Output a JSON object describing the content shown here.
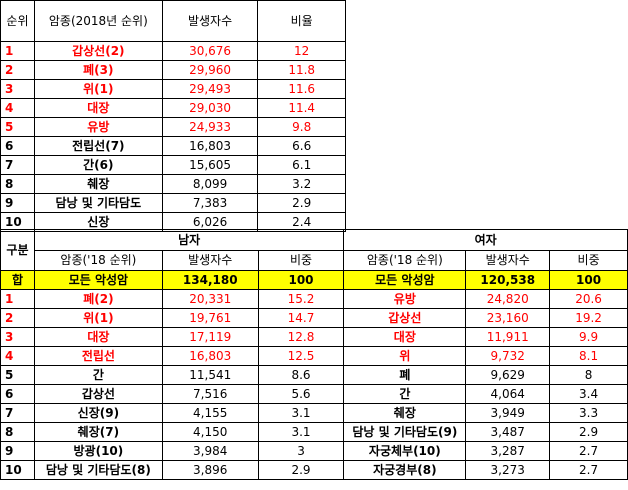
{
  "table1": {
    "headers": [
      "순위",
      "암종(2018년 순위)",
      "발생자수",
      "비율"
    ],
    "rows": [
      {
        "rank": "1",
        "cancer": "갑상선(2)",
        "count": "30,676",
        "ratio": "12",
        "red": true
      },
      {
        "rank": "2",
        "cancer": "폐(3)",
        "count": "29,960",
        "ratio": "11.8",
        "red": true
      },
      {
        "rank": "3",
        "cancer": "위(1)",
        "count": "29,493",
        "ratio": "11.6",
        "red": true
      },
      {
        "rank": "4",
        "cancer": "대장",
        "count": "29,030",
        "ratio": "11.4",
        "red": true
      },
      {
        "rank": "5",
        "cancer": "유방",
        "count": "24,933",
        "ratio": "9.8",
        "red": true
      },
      {
        "rank": "6",
        "cancer": "전립선(7)",
        "count": "16,803",
        "ratio": "6.6",
        "red": false
      },
      {
        "rank": "7",
        "cancer": "간(6)",
        "count": "15,605",
        "ratio": "6.1",
        "red": false
      },
      {
        "rank": "8",
        "cancer": "췌장",
        "count": "8,099",
        "ratio": "3.2",
        "red": false
      },
      {
        "rank": "9",
        "cancer": "담낭 및 기타담도",
        "count": "7,383",
        "ratio": "2.9",
        "red": false
      },
      {
        "rank": "10",
        "cancer": "신장",
        "count": "6,026",
        "ratio": "2.4",
        "red": false
      }
    ]
  },
  "table2": {
    "group_label": "구분",
    "male_label": "남자",
    "female_label": "여자",
    "sub_headers": {
      "male_cancer": "암종('18 순위)",
      "male_count": "발생자수",
      "male_share": "비중",
      "female_cancer": "암종('18 순위)",
      "female_count": "발생자수",
      "female_share": "비중"
    },
    "total": {
      "label": "합",
      "male_cancer": "모든 악성암",
      "male_count": "134,180",
      "male_share": "100",
      "female_cancer": "모든 악성암",
      "female_count": "120,538",
      "female_share": "100"
    },
    "rows": [
      {
        "rank": "1",
        "m_cancer": "폐(2)",
        "m_count": "20,331",
        "m_share": "15.2",
        "f_cancer": "유방",
        "f_count": "24,820",
        "f_share": "20.6",
        "red": true
      },
      {
        "rank": "2",
        "m_cancer": "위(1)",
        "m_count": "19,761",
        "m_share": "14.7",
        "f_cancer": "갑상선",
        "f_count": "23,160",
        "f_share": "19.2",
        "red": true
      },
      {
        "rank": "3",
        "m_cancer": "대장",
        "m_count": "17,119",
        "m_share": "12.8",
        "f_cancer": "대장",
        "f_count": "11,911",
        "f_share": "9.9",
        "red": true
      },
      {
        "rank": "4",
        "m_cancer": "전립선",
        "m_count": "16,803",
        "m_share": "12.5",
        "f_cancer": "위",
        "f_count": "9,732",
        "f_share": "8.1",
        "red": true
      },
      {
        "rank": "5",
        "m_cancer": "간",
        "m_count": "11,541",
        "m_share": "8.6",
        "f_cancer": "폐",
        "f_count": "9,629",
        "f_share": "8",
        "red": false
      },
      {
        "rank": "6",
        "m_cancer": "갑상선",
        "m_count": "7,516",
        "m_share": "5.6",
        "f_cancer": "간",
        "f_count": "4,064",
        "f_share": "3.4",
        "red": false
      },
      {
        "rank": "7",
        "m_cancer": "신장(9)",
        "m_count": "4,155",
        "m_share": "3.1",
        "f_cancer": "췌장",
        "f_count": "3,949",
        "f_share": "3.3",
        "red": false
      },
      {
        "rank": "8",
        "m_cancer": "췌장(7)",
        "m_count": "4,150",
        "m_share": "3.1",
        "f_cancer": "담낭 및 기타담도(9)",
        "f_count": "3,487",
        "f_share": "2.9",
        "red": false
      },
      {
        "rank": "9",
        "m_cancer": "방광(10)",
        "m_count": "3,984",
        "m_share": "3",
        "f_cancer": "자궁체부(10)",
        "f_count": "3,287",
        "f_share": "2.7",
        "red": false
      },
      {
        "rank": "10",
        "m_cancer": "담낭 및 기타담도(8)",
        "m_count": "3,896",
        "m_share": "2.9",
        "f_cancer": "자궁경부(8)",
        "f_count": "3,273",
        "f_share": "2.7",
        "red": false
      }
    ]
  }
}
